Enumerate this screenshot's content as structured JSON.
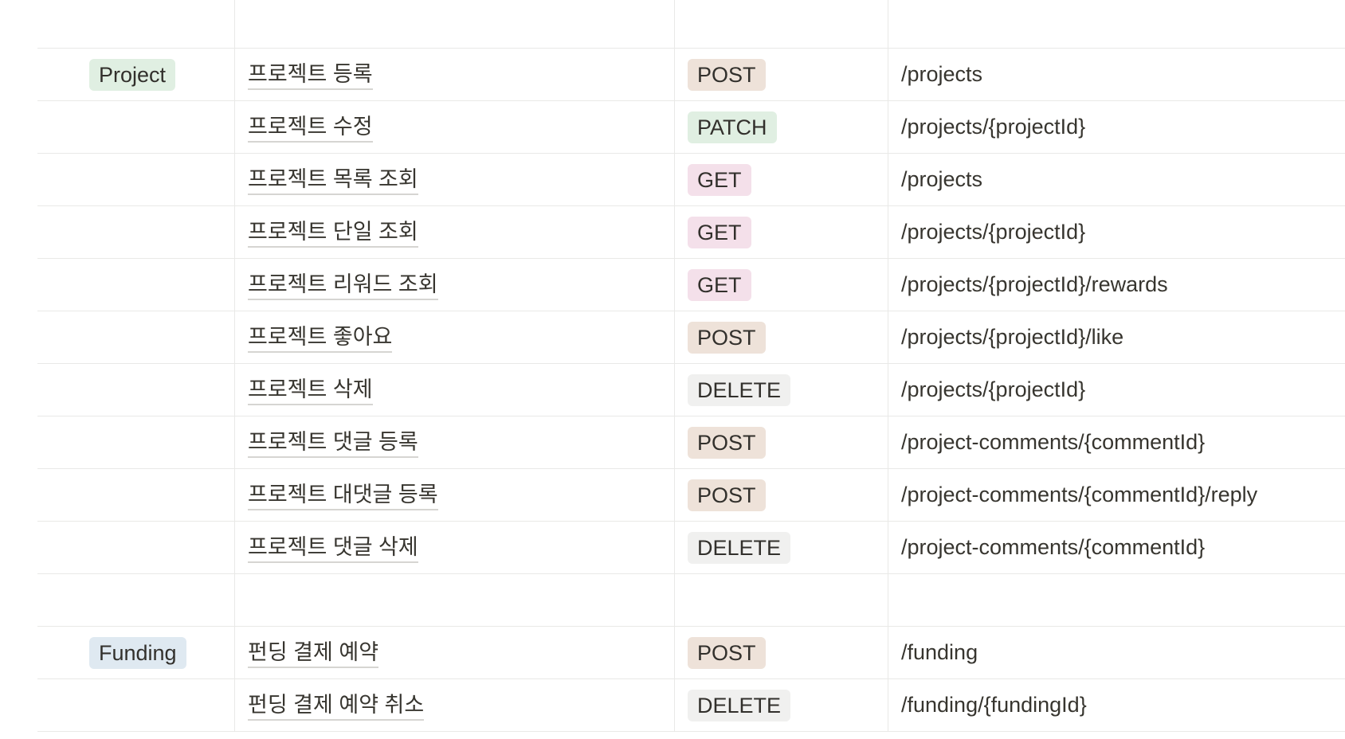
{
  "colors": {
    "Project": "#e0efe2",
    "Funding": "#dfe9f1",
    "POST": "#eee2d9",
    "PATCH": "#e0efe2",
    "GET": "#f4e0ea",
    "DELETE": "#f0f0ef"
  },
  "rows": [
    {
      "domain": "",
      "name": "",
      "method": "",
      "path": ""
    },
    {
      "domain": "Project",
      "name": "프로젝트 등록",
      "method": "POST",
      "path": "/projects"
    },
    {
      "domain": "",
      "name": "프로젝트 수정",
      "method": "PATCH",
      "path": "/projects/{projectId}"
    },
    {
      "domain": "",
      "name": "프로젝트 목록 조회",
      "method": "GET",
      "path": "/projects"
    },
    {
      "domain": "",
      "name": "프로젝트 단일 조회",
      "method": "GET",
      "path": "/projects/{projectId}"
    },
    {
      "domain": "",
      "name": "프로젝트 리워드 조회",
      "method": "GET",
      "path": "/projects/{projectId}/rewards"
    },
    {
      "domain": "",
      "name": "프로젝트 좋아요",
      "method": "POST",
      "path": "/projects/{projectId}/like"
    },
    {
      "domain": "",
      "name": "프로젝트 삭제",
      "method": "DELETE",
      "path": "/projects/{projectId}"
    },
    {
      "domain": "",
      "name": "프로젝트 댓글 등록",
      "method": "POST",
      "path": "/project-comments/{commentId}"
    },
    {
      "domain": "",
      "name": "프로젝트 대댓글 등록",
      "method": "POST",
      "path": "/project-comments/{commentId}/reply"
    },
    {
      "domain": "",
      "name": "프로젝트 댓글 삭제",
      "method": "DELETE",
      "path": "/project-comments/{commentId}"
    },
    {
      "domain": "",
      "name": "",
      "method": "",
      "path": ""
    },
    {
      "domain": "Funding",
      "name": "펀딩 결제 예약",
      "method": "POST",
      "path": "/funding"
    },
    {
      "domain": "",
      "name": "펀딩 결제 예약 취소",
      "method": "DELETE",
      "path": "/funding/{fundingId}"
    }
  ]
}
